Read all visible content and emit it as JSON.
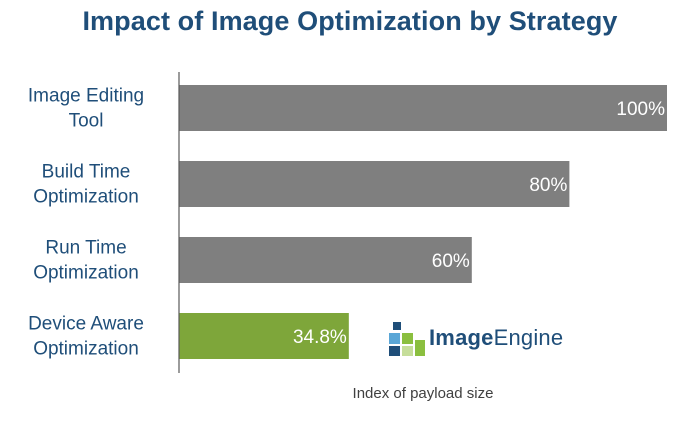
{
  "chart_data": {
    "type": "bar",
    "orientation": "horizontal",
    "title": "Impact of Image Optimization by Strategy",
    "xlabel": "Index of payload size",
    "ylabel": "",
    "categories": [
      [
        "Image Editing",
        "Tool"
      ],
      [
        "Build Time",
        "Optimization"
      ],
      [
        "Run Time",
        "Optimization"
      ],
      [
        "Device Aware",
        "Optimization"
      ]
    ],
    "values": [
      100,
      80,
      60,
      34.8
    ],
    "value_labels": [
      "100%",
      "80%",
      "60%",
      "34.8%"
    ],
    "bar_colors": [
      "#7f7f7f",
      "#7f7f7f",
      "#7f7f7f",
      "#7ea63a"
    ],
    "xlim": [
      0,
      100
    ],
    "grid": false,
    "legend": "none"
  },
  "logo": {
    "text_bold": "Image",
    "text_light": "Engine",
    "colors": {
      "dark_blue": "#1f4e79",
      "light_blue": "#5aa6d6",
      "green": "#8bbf3f",
      "light_green": "#c6de9a"
    }
  },
  "colors": {
    "title": "#1f4e79",
    "category_label": "#1f4e79",
    "axis": "#595959",
    "value_label": "#ffffff",
    "xlabel": "#404040"
  }
}
